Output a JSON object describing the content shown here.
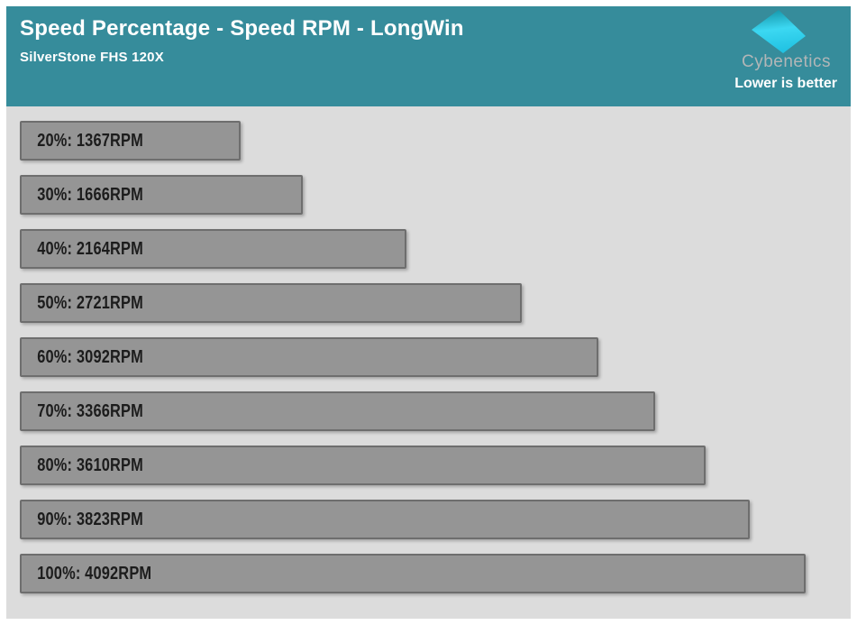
{
  "header": {
    "title": "Speed Percentage - Speed RPM - LongWin",
    "subtitle": "SilverStone FHS 120X",
    "brand": "Cybenetics",
    "note": "Lower is better",
    "background_color": "#368c9b",
    "logo_gradient": [
      "#118fa2",
      "#3cd8f2",
      "#22c3e3"
    ]
  },
  "colors": {
    "chart_background": "#dcdcdc",
    "bar_fill": "#959595",
    "bar_border": "#6e6e6e",
    "bar_text": "#1c1c1c",
    "header_text": "#ffffff",
    "brand_text": "#b2b6b7"
  },
  "chart_data": {
    "type": "bar",
    "orientation": "horizontal",
    "title": "Speed Percentage - Speed RPM - LongWin",
    "subtitle": "SilverStone FHS 120X",
    "annotation": "Lower is better",
    "categories": [
      "20%",
      "30%",
      "40%",
      "50%",
      "60%",
      "70%",
      "80%",
      "90%",
      "100%"
    ],
    "values": [
      1367,
      1666,
      2164,
      2721,
      3092,
      3366,
      3610,
      3823,
      4092
    ],
    "unit": "RPM",
    "labels": [
      "20%: 1367RPM",
      "30%: 1666RPM",
      "40%: 2164RPM",
      "50%: 2721RPM",
      "60%: 3092RPM",
      "70%: 3366RPM",
      "80%: 3610RPM",
      "90%: 3823RPM",
      "100%: 4092RPM"
    ],
    "xlim": [
      300,
      4300
    ],
    "grid": false,
    "legend": false,
    "bar_color": "#959595"
  }
}
